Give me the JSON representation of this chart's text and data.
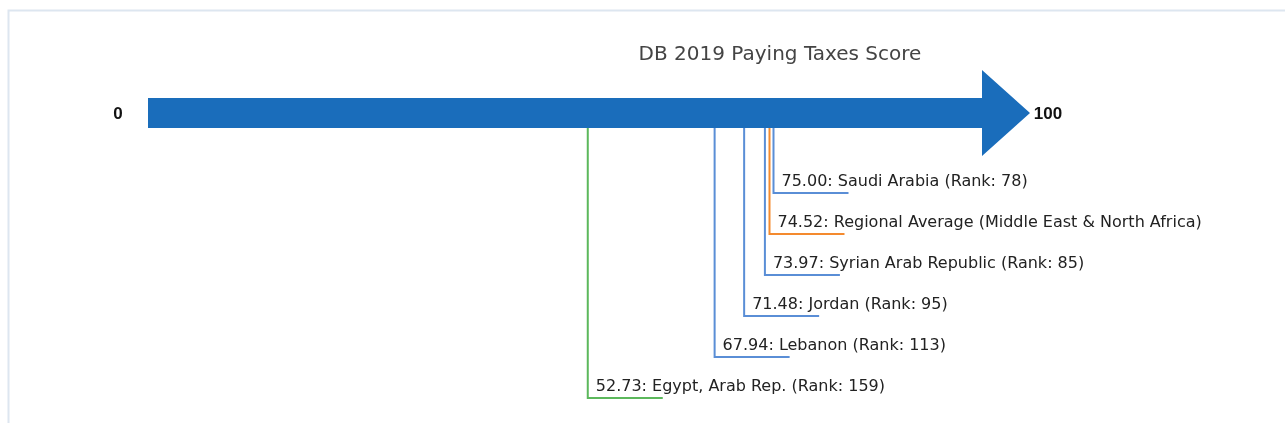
{
  "chart_data": {
    "type": "other",
    "title": "DB 2019 Paying Taxes Score",
    "values": [
      75.0,
      74.52,
      73.97,
      71.48,
      67.94,
      52.73
    ],
    "value_labels": [
      "75.00: Saudi Arabia (Rank: 78)",
      "74.52: Regional Average (Middle East & North Africa)",
      "73.97: Syrian Arab Republic (Rank: 85)",
      "71.48: Jordan (Rank: 95)",
      "67.94: Lebanon (Rank: 113)",
      "52.73: Egypt, Arab Rep. (Rank: 159)"
    ],
    "colors": [
      "#5a8ed6",
      "#f48a2e",
      "#5a8ed6",
      "#5a8ed6",
      "#5a8ed6",
      "#5cb85c"
    ],
    "annotations": [
      "0",
      "100"
    ],
    "color": "#1a6dbb"
  }
}
